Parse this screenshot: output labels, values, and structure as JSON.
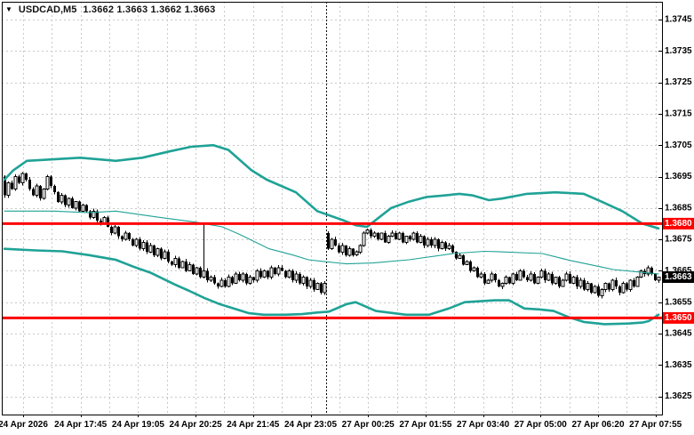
{
  "header": {
    "symbol": "USDCAD,M5",
    "quotes": "1.3662 1.3663 1.3662 1.3663"
  },
  "colors": {
    "background": "#ffffff",
    "grid": "#c9c9c9",
    "band": "#1fa296",
    "level_red": "#ff0000",
    "current_tag_bg": "#000000",
    "tag_text": "#ffffff",
    "candle": "#000000",
    "axis_text": "#000000"
  },
  "chart_data": {
    "type": "candlestick",
    "symbol": "USDCAD",
    "timeframe": "M5",
    "grid": true,
    "legend_position": "none",
    "ylim": [
      1.3619,
      1.3751
    ],
    "y_tick_labels": [
      "1.3745",
      "1.3735",
      "1.3725",
      "1.3715",
      "1.3705",
      "1.3695",
      "1.3685",
      "1.3675",
      "1.3665",
      "1.3655",
      "1.3645",
      "1.3635",
      "1.3625"
    ],
    "y_ticks": [
      1.3745,
      1.3735,
      1.3725,
      1.3715,
      1.3705,
      1.3695,
      1.3685,
      1.3675,
      1.3665,
      1.3655,
      1.3645,
      1.3635,
      1.3625
    ],
    "x_labels": [
      "24 Apr 2026",
      "24 Apr 17:45",
      "24 Apr 19:05",
      "24 Apr 20:25",
      "24 Apr 21:45",
      "24 Apr 23:05",
      "27 Apr 00:25",
      "27 Apr 01:55",
      "27 Apr 03:40",
      "27 Apr 05:00",
      "27 Apr 06:20",
      "27 Apr 07:55"
    ],
    "separator_bar": 91,
    "levels": [
      {
        "price": 1.368,
        "label": "1.3680",
        "color": "#ff0000"
      },
      {
        "price": 1.365,
        "label": "1.3650",
        "color": "#ff0000"
      }
    ],
    "current_price": {
      "value": 1.3663,
      "label": "1.3663"
    },
    "bars": {
      "count": 185,
      "first_open": 1.3695,
      "gap_open": {
        "bar": 91,
        "open": 1.3677
      },
      "spike": {
        "bar": 56,
        "high": 1.368
      },
      "closes": [
        1.3689,
        1.3693,
        1.3691,
        1.3695,
        1.3693,
        1.3696,
        1.3694,
        1.3691,
        1.3689,
        1.3692,
        1.3688,
        1.3691,
        1.3695,
        1.3692,
        1.369,
        1.3687,
        1.3689,
        1.3686,
        1.3688,
        1.3685,
        1.3687,
        1.3684,
        1.3686,
        1.3684,
        1.3682,
        1.3684,
        1.3681,
        1.368,
        1.3682,
        1.3679,
        1.3677,
        1.3679,
        1.3676,
        1.3675,
        1.3677,
        1.3675,
        1.3673,
        1.3675,
        1.3672,
        1.3674,
        1.3671,
        1.3673,
        1.367,
        1.3672,
        1.3669,
        1.3671,
        1.3668,
        1.3667,
        1.3669,
        1.3666,
        1.3668,
        1.3665,
        1.3667,
        1.3664,
        1.3666,
        1.3663,
        1.3665,
        1.3662,
        1.3663,
        1.3661,
        1.366,
        1.3662,
        1.366,
        1.3663,
        1.3661,
        1.3664,
        1.3662,
        1.3664,
        1.3661,
        1.3663,
        1.3662,
        1.3665,
        1.3663,
        1.3665,
        1.3663,
        1.3666,
        1.3664,
        1.3666,
        1.3665,
        1.3663,
        1.3665,
        1.3662,
        1.3664,
        1.3661,
        1.3663,
        1.366,
        1.3662,
        1.3659,
        1.3661,
        1.3658,
        1.3661,
        1.3672,
        1.3675,
        1.3673,
        1.3671,
        1.3673,
        1.367,
        1.3672,
        1.367,
        1.3671,
        1.3673,
        1.3677,
        1.3678,
        1.3676,
        1.3677,
        1.3675,
        1.3677,
        1.3674,
        1.3676,
        1.3677,
        1.3675,
        1.3677,
        1.3674,
        1.3676,
        1.3675,
        1.3677,
        1.3674,
        1.3676,
        1.3673,
        1.3675,
        1.3673,
        1.3675,
        1.3672,
        1.3674,
        1.3672,
        1.3673,
        1.3671,
        1.3669,
        1.367,
        1.3667,
        1.3668,
        1.3665,
        1.3666,
        1.3663,
        1.3664,
        1.3661,
        1.3662,
        1.3664,
        1.3662,
        1.366,
        1.3661,
        1.3663,
        1.3661,
        1.3664,
        1.3662,
        1.3665,
        1.3663,
        1.3662,
        1.3664,
        1.3661,
        1.3663,
        1.3665,
        1.3662,
        1.3664,
        1.3661,
        1.3663,
        1.366,
        1.3662,
        1.3664,
        1.3661,
        1.3663,
        1.366,
        1.3662,
        1.3659,
        1.3661,
        1.3658,
        1.366,
        1.3657,
        1.3659,
        1.3661,
        1.3659,
        1.3662,
        1.366,
        1.3658,
        1.3661,
        1.3659,
        1.3662,
        1.366,
        1.3663,
        1.3665,
        1.3664,
        1.3666,
        1.3664,
        1.3662,
        1.3663
      ]
    },
    "bands": {
      "upper": [
        [
          0,
          1.3694
        ],
        [
          2.5,
          1.3697
        ],
        [
          6.3,
          1.37
        ],
        [
          13.8,
          1.37005
        ],
        [
          21.3,
          1.3701
        ],
        [
          31.3,
          1.37
        ],
        [
          38.8,
          1.3701
        ],
        [
          46.3,
          1.3703
        ],
        [
          52.5,
          1.37045
        ],
        [
          58.8,
          1.3705
        ],
        [
          63,
          1.37035
        ],
        [
          69.5,
          1.3697
        ],
        [
          73.8,
          1.3694
        ],
        [
          82,
          1.369
        ],
        [
          88,
          1.3684
        ],
        [
          95.5,
          1.3681
        ],
        [
          98.8,
          1.36795
        ],
        [
          102,
          1.3679
        ],
        [
          108.8,
          1.3685
        ],
        [
          113.8,
          1.3687
        ],
        [
          118.8,
          1.36885
        ],
        [
          123.8,
          1.3689
        ],
        [
          128,
          1.36895
        ],
        [
          131.8,
          1.3689
        ],
        [
          136.3,
          1.36875
        ],
        [
          140,
          1.3688
        ],
        [
          147,
          1.36895
        ],
        [
          155,
          1.369
        ],
        [
          163,
          1.36895
        ],
        [
          168,
          1.3687
        ],
        [
          173.8,
          1.3684
        ],
        [
          179.5,
          1.368
        ],
        [
          184,
          1.36785
        ]
      ],
      "middle": [
        [
          0,
          1.3684
        ],
        [
          13.8,
          1.3684
        ],
        [
          23.8,
          1.36835
        ],
        [
          31.3,
          1.3684
        ],
        [
          43.8,
          1.3682
        ],
        [
          53.8,
          1.36805
        ],
        [
          61.3,
          1.3679
        ],
        [
          66.3,
          1.36765
        ],
        [
          74.5,
          1.3672
        ],
        [
          81.3,
          1.367
        ],
        [
          85.5,
          1.36685
        ],
        [
          89.5,
          1.3668
        ],
        [
          96.3,
          1.36672
        ],
        [
          103.8,
          1.36675
        ],
        [
          113.8,
          1.36685
        ],
        [
          126.3,
          1.36705
        ],
        [
          135,
          1.36712
        ],
        [
          138.8,
          1.36711
        ],
        [
          151.3,
          1.36705
        ],
        [
          159.5,
          1.36682
        ],
        [
          168,
          1.36662
        ],
        [
          171.3,
          1.36654
        ],
        [
          179.5,
          1.36645
        ],
        [
          184,
          1.3664
        ]
      ],
      "lower": [
        [
          0,
          1.3672
        ],
        [
          8.8,
          1.36715
        ],
        [
          16.3,
          1.36712
        ],
        [
          23.8,
          1.367
        ],
        [
          31.3,
          1.36685
        ],
        [
          36.3,
          1.36663
        ],
        [
          41.3,
          1.36643
        ],
        [
          48,
          1.36606
        ],
        [
          52,
          1.36586
        ],
        [
          56.3,
          1.36563
        ],
        [
          60.5,
          1.36544
        ],
        [
          64.5,
          1.3653
        ],
        [
          68.8,
          1.36515
        ],
        [
          73,
          1.3651
        ],
        [
          78.8,
          1.3651
        ],
        [
          83.8,
          1.36512
        ],
        [
          88,
          1.36517
        ],
        [
          91.3,
          1.3652
        ],
        [
          96.3,
          1.36544
        ],
        [
          98.8,
          1.3655
        ],
        [
          104.5,
          1.36522
        ],
        [
          113,
          1.3651
        ],
        [
          119.5,
          1.3651
        ],
        [
          125,
          1.3653
        ],
        [
          129.5,
          1.3655
        ],
        [
          138,
          1.36556
        ],
        [
          142,
          1.36556
        ],
        [
          146.3,
          1.3653
        ],
        [
          150.5,
          1.36527
        ],
        [
          154.5,
          1.36522
        ],
        [
          158.8,
          1.36502
        ],
        [
          163,
          1.36487
        ],
        [
          168.8,
          1.3648
        ],
        [
          175.5,
          1.36482
        ],
        [
          179.5,
          1.36485
        ],
        [
          181.3,
          1.3649
        ],
        [
          184,
          1.3651
        ]
      ]
    }
  }
}
